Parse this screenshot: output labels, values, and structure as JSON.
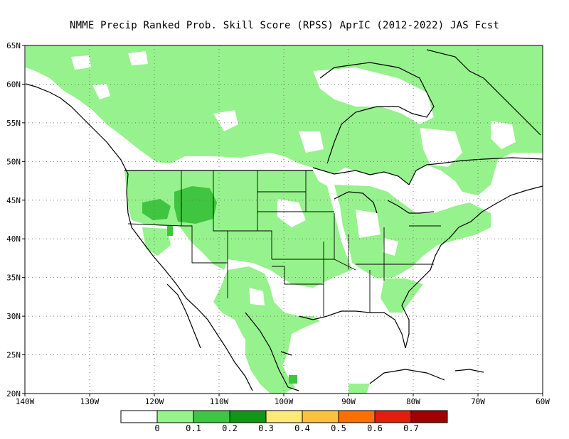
{
  "title": "NMME Precip Ranked Prob. Skill Score (RPSS) AprIC (2012-2022) JAS Fcst",
  "chart_data": {
    "type": "heatmap",
    "title": "NMME Precip Ranked Prob. Skill Score (RPSS) AprIC (2012-2022) JAS Fcst",
    "lon_range": [
      -140,
      -60
    ],
    "lat_range": [
      20,
      65
    ],
    "x_ticks": [
      "140W",
      "130W",
      "120W",
      "110W",
      "100W",
      "90W",
      "80W",
      "70W",
      "60W"
    ],
    "y_ticks": [
      "20N",
      "25N",
      "30N",
      "35N",
      "40N",
      "45N",
      "50N",
      "55N",
      "60N",
      "65N"
    ],
    "grid": true,
    "legend": {
      "placement": "bottom",
      "bins": [
        {
          "color": "#ffffff"
        },
        {
          "color": "#96f28c"
        },
        {
          "color": "#3fc53f"
        },
        {
          "color": "#149614"
        },
        {
          "color": "#ffe87a"
        },
        {
          "color": "#ffc03c"
        },
        {
          "color": "#ff6e00"
        },
        {
          "color": "#e21e0a"
        },
        {
          "color": "#a00000"
        }
      ],
      "boundaries": [
        "0",
        "0.1",
        "0.2",
        "0.3",
        "0.4",
        "0.5",
        "0.6",
        "0.7"
      ]
    }
  }
}
